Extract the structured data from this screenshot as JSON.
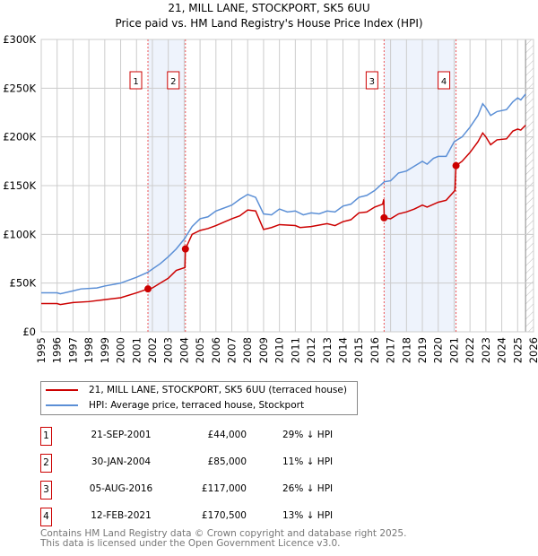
{
  "chart_data": {
    "type": "line",
    "title": "21, MILL LANE, STOCKPORT, SK5 6UU",
    "subtitle": "Price paid vs. HM Land Registry's House Price Index (HPI)",
    "xlim": [
      1995,
      2026
    ],
    "ylim": [
      0,
      300000
    ],
    "yticks": [
      "£0",
      "£50K",
      "£100K",
      "£150K",
      "£200K",
      "£250K",
      "£300K"
    ],
    "xticks": [
      "1995",
      "1996",
      "1997",
      "1998",
      "1999",
      "2000",
      "2001",
      "2002",
      "2003",
      "2004",
      "2005",
      "2006",
      "2007",
      "2008",
      "2009",
      "2010",
      "2011",
      "2012",
      "2013",
      "2014",
      "2015",
      "2016",
      "2017",
      "2018",
      "2019",
      "2020",
      "2021",
      "2022",
      "2023",
      "2024",
      "2025",
      "2026"
    ],
    "grid": true,
    "series": [
      {
        "name": "21, MILL LANE, STOCKPORT, SK5 6UU (terraced house)",
        "color": "#cc0000",
        "x": [
          1995,
          1996,
          1996.2,
          1997,
          1998,
          1999,
          2000,
          2001,
          2001.72,
          2002,
          2002.5,
          2003,
          2003.5,
          2004.05,
          2004.08,
          2004.5,
          2005,
          2005.5,
          2006,
          2007,
          2007.5,
          2008,
          2008.5,
          2009,
          2009.5,
          2010,
          2011,
          2011.3,
          2012,
          2013,
          2013.5,
          2014,
          2014.5,
          2015,
          2015.5,
          2016,
          2016.5,
          2016.57,
          2016.6,
          2017,
          2017.5,
          2018,
          2018.5,
          2019,
          2019.3,
          2020,
          2020.5,
          2021.05,
          2021.12,
          2021.5,
          2022,
          2022.5,
          2022.8,
          2023,
          2023.3,
          2023.7,
          2024.3,
          2024.7,
          2025,
          2025.2,
          2025.5
        ],
        "y": [
          29000,
          29000,
          28000,
          30000,
          31000,
          33000,
          35000,
          40000,
          44000,
          45000,
          50000,
          55000,
          63000,
          66000,
          85000,
          100000,
          104000,
          106000,
          109000,
          116000,
          119000,
          125000,
          124000,
          105000,
          107000,
          110000,
          109000,
          107000,
          108000,
          111000,
          109000,
          113000,
          115000,
          122000,
          123000,
          128000,
          131000,
          136000,
          117000,
          116000,
          121000,
          123000,
          126000,
          130000,
          128000,
          133000,
          135000,
          145000,
          170500,
          175000,
          184000,
          195000,
          204000,
          200000,
          192000,
          197000,
          198000,
          206000,
          208000,
          207000,
          212000
        ]
      },
      {
        "name": "HPI: Average price, terraced house, Stockport",
        "color": "#5b8fd6",
        "x": [
          1995,
          1996,
          1996.2,
          1997,
          1997.5,
          1998.5,
          1999,
          2000,
          2001,
          2001.7,
          2002.5,
          2003,
          2003.5,
          2004,
          2004.5,
          2005,
          2005.5,
          2006,
          2007,
          2007.5,
          2008,
          2008.5,
          2009,
          2009.5,
          2010,
          2010.5,
          2011,
          2011.5,
          2012,
          2012.5,
          2013,
          2013.5,
          2014,
          2014.5,
          2015,
          2015.5,
          2016,
          2016.6,
          2017,
          2017.5,
          2018,
          2018.5,
          2019,
          2019.3,
          2019.7,
          2020,
          2020.5,
          2021,
          2021.5,
          2022,
          2022.5,
          2022.8,
          2023,
          2023.3,
          2023.7,
          2024.3,
          2024.7,
          2025,
          2025.2,
          2025.5
        ],
        "y": [
          40000,
          40000,
          39000,
          42000,
          44000,
          45000,
          47000,
          50000,
          56000,
          61000,
          70000,
          77000,
          85000,
          95000,
          108000,
          116000,
          118000,
          124000,
          130000,
          136000,
          141000,
          138000,
          121000,
          120000,
          126000,
          123000,
          124000,
          120000,
          122000,
          121000,
          124000,
          123000,
          129000,
          131000,
          138000,
          140000,
          145000,
          154000,
          155000,
          163000,
          165000,
          170000,
          175000,
          172000,
          178000,
          180000,
          180000,
          195000,
          200000,
          210000,
          222000,
          234000,
          230000,
          222000,
          226000,
          228000,
          236000,
          240000,
          238000,
          244000
        ]
      }
    ],
    "sales": [
      {
        "label": "1",
        "x": 2001.72,
        "date": "21-SEP-2001",
        "price": 44000,
        "price_text": "£44,000",
        "hpi": "29% ↓ HPI"
      },
      {
        "label": "2",
        "x": 2004.08,
        "date": "30-JAN-2004",
        "price": 85000,
        "price_text": "£85,000",
        "hpi": "11% ↓ HPI"
      },
      {
        "label": "3",
        "x": 2016.59,
        "date": "05-AUG-2016",
        "price": 117000,
        "price_text": "£117,000",
        "hpi": "26% ↓ HPI"
      },
      {
        "label": "4",
        "x": 2021.12,
        "date": "12-FEB-2021",
        "price": 170500,
        "price_text": "£170,500",
        "hpi": "13% ↓ HPI"
      }
    ],
    "shaded_ranges": [
      [
        2001.72,
        2004.08
      ],
      [
        2016.59,
        2021.12
      ]
    ],
    "forecast_from": 2025.5,
    "legend_position": "below"
  },
  "footer": {
    "line1": "Contains HM Land Registry data © Crown copyright and database right 2025.",
    "line2": "This data is licensed under the Open Government Licence v3.0."
  }
}
